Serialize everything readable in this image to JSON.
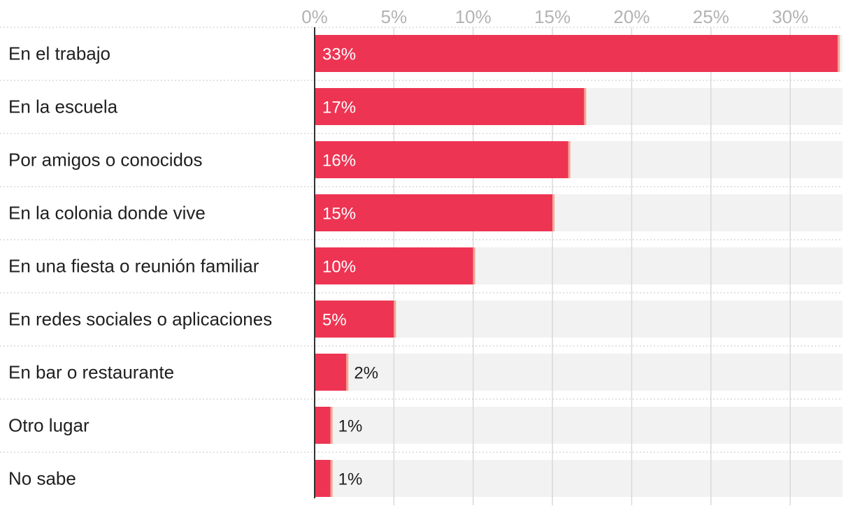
{
  "chart_data": {
    "type": "bar",
    "orientation": "horizontal",
    "title": "",
    "xlabel": "",
    "ylabel": "",
    "xlim": [
      0,
      33.3
    ],
    "ticks": [
      0,
      5,
      10,
      15,
      20,
      25,
      30
    ],
    "tick_labels": [
      "0%",
      "5%",
      "10%",
      "15%",
      "20%",
      "25%",
      "30%"
    ],
    "grid": true,
    "categories": [
      "En el trabajo",
      "En la escuela",
      "Por amigos o conocidos",
      "En la colonia donde vive",
      "En una fiesta o reunión familiar",
      "En redes sociales o aplicaciones",
      "En bar o restaurante",
      "Otro lugar",
      "No sabe"
    ],
    "values": [
      33,
      17,
      16,
      15,
      10,
      5,
      2,
      1,
      1
    ],
    "value_labels": [
      "33%",
      "17%",
      "16%",
      "15%",
      "10%",
      "5%",
      "2%",
      "1%",
      "1%"
    ],
    "colors": {
      "bar": "#ee3453",
      "bar_edge": "#f2a894",
      "track": "#f2f2f2",
      "grid": "#d9d9d9",
      "axis": "#333333"
    }
  }
}
